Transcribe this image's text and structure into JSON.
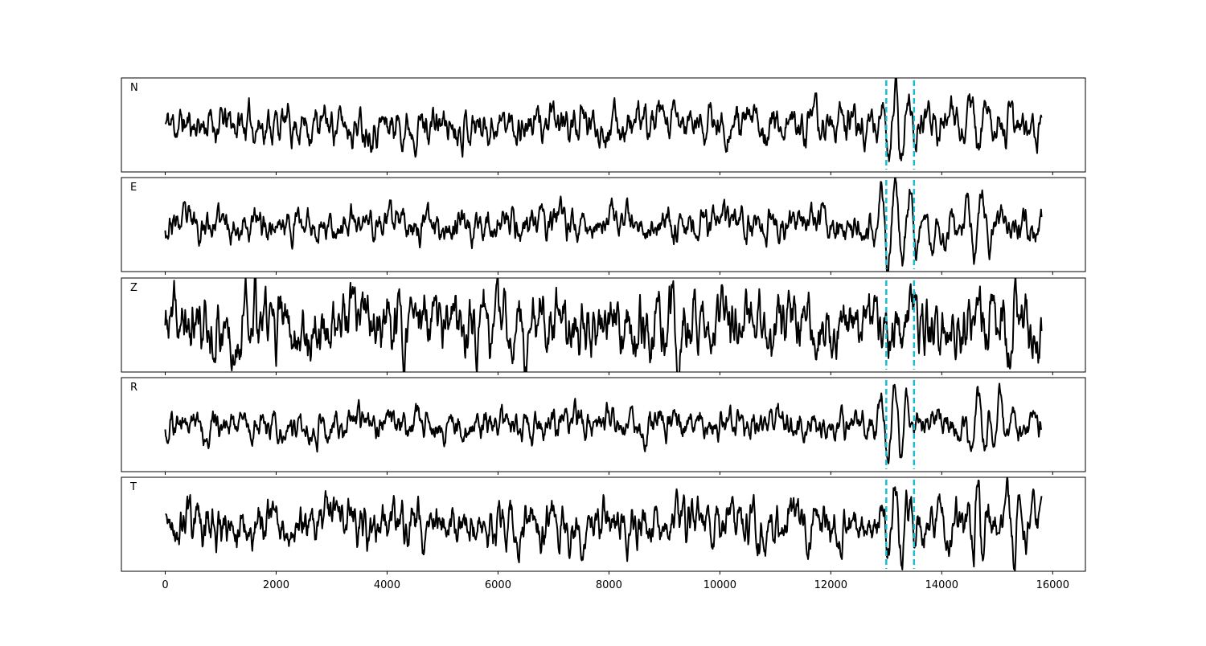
{
  "chart_data": {
    "type": "line",
    "xlim": [
      -790,
      16590
    ],
    "x_ticks": [
      0,
      2000,
      4000,
      6000,
      8000,
      10000,
      12000,
      14000,
      16000
    ],
    "x_tick_labels": [
      "0",
      "2000",
      "4000",
      "6000",
      "8000",
      "10000",
      "12000",
      "14000",
      "16000"
    ],
    "x_range": [
      0,
      15800
    ],
    "n_samples": 1581,
    "grid": false,
    "legend": "none",
    "markers": {
      "x": [
        13000,
        13500
      ],
      "style": "dashed",
      "color": "#17becf"
    },
    "panels": [
      {
        "label": "N",
        "ylim": [
          -1.35,
          1.35
        ],
        "noise_amplitude": 0.3,
        "seed": 11,
        "events": [
          {
            "x": 13160,
            "amplitude": 1.05,
            "width": 200,
            "period": 240
          },
          {
            "x": 14680,
            "amplitude": -1.0,
            "width": 150,
            "period": 260
          },
          {
            "x": 15250,
            "amplitude": 0.7,
            "width": 120,
            "period": 200
          }
        ]
      },
      {
        "label": "E",
        "ylim": [
          -1.35,
          1.35
        ],
        "noise_amplitude": 0.26,
        "seed": 23,
        "events": [
          {
            "x": 13160,
            "amplitude": 1.15,
            "width": 260,
            "period": 260
          },
          {
            "x": 13700,
            "amplitude": 0.55,
            "width": 300,
            "period": 240
          },
          {
            "x": 14600,
            "amplitude": -0.95,
            "width": 200,
            "period": 280
          }
        ]
      },
      {
        "label": "Z",
        "ylim": [
          -1.35,
          1.35
        ],
        "noise_amplitude": 0.5,
        "seed": 37,
        "events": [
          {
            "x": 1620,
            "amplitude": 0.95,
            "width": 120,
            "period": 180
          },
          {
            "x": 6700,
            "amplitude": -1.0,
            "width": 160,
            "period": 200
          },
          {
            "x": 9350,
            "amplitude": 0.8,
            "width": 200,
            "period": 200
          },
          {
            "x": 15200,
            "amplitude": -0.7,
            "width": 150,
            "period": 200
          }
        ]
      },
      {
        "label": "R",
        "ylim": [
          -1.35,
          1.35
        ],
        "noise_amplitude": 0.24,
        "seed": 51,
        "events": [
          {
            "x": 13150,
            "amplitude": 1.1,
            "width": 220,
            "period": 250
          },
          {
            "x": 14650,
            "amplitude": 1.0,
            "width": 180,
            "period": 260
          },
          {
            "x": 15050,
            "amplitude": 0.7,
            "width": 200,
            "period": 240
          }
        ]
      },
      {
        "label": "T",
        "ylim": [
          -1.35,
          1.35
        ],
        "noise_amplitude": 0.36,
        "seed": 67,
        "events": [
          {
            "x": 13160,
            "amplitude": 0.95,
            "width": 220,
            "period": 240
          },
          {
            "x": 14650,
            "amplitude": 1.15,
            "width": 120,
            "period": 200
          },
          {
            "x": 15300,
            "amplitude": -0.85,
            "width": 180,
            "period": 240
          }
        ]
      }
    ]
  }
}
